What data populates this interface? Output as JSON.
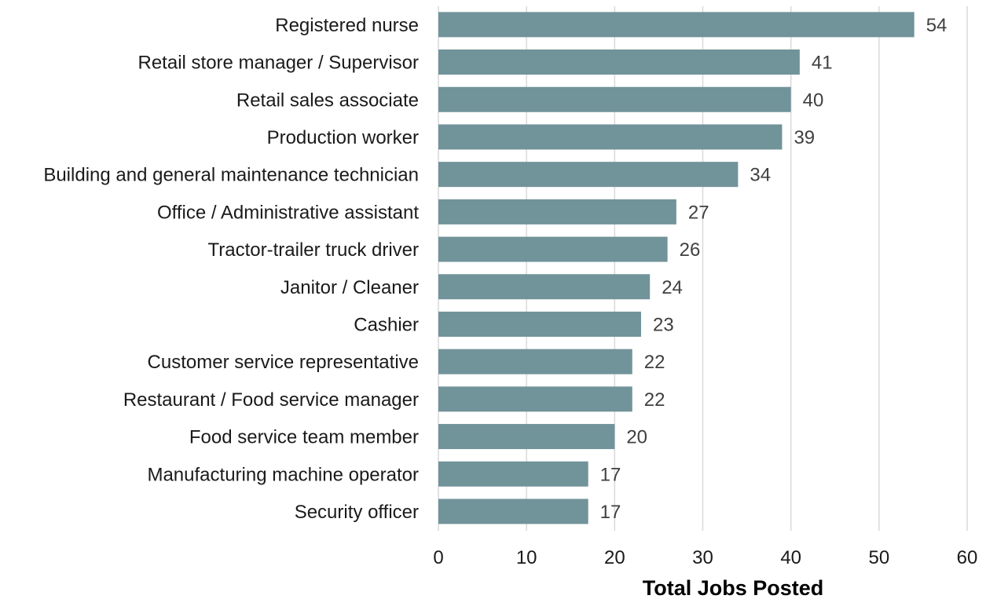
{
  "chart_data": {
    "type": "bar",
    "orientation": "horizontal",
    "categories": [
      "Registered nurse",
      "Retail store manager / Supervisor",
      "Retail sales associate",
      "Production worker",
      "Building and general maintenance technician",
      "Office / Administrative assistant",
      "Tractor-trailer truck driver",
      "Janitor / Cleaner",
      "Cashier",
      "Customer service representative",
      "Restaurant / Food service manager",
      "Food service team member",
      "Manufacturing machine operator",
      "Security officer"
    ],
    "values": [
      54,
      41,
      40,
      39,
      34,
      27,
      26,
      24,
      23,
      22,
      22,
      20,
      17,
      17
    ],
    "value_labels": [
      "54",
      "41",
      "40",
      "39",
      "34",
      "27",
      "26",
      "24",
      "23",
      "22",
      "22",
      "20",
      "17",
      "17"
    ],
    "xlabel": "Total Jobs Posted",
    "xlim": [
      0,
      60
    ],
    "xticks": [
      0,
      10,
      20,
      30,
      40,
      50,
      60
    ],
    "xtick_labels": [
      "0",
      "10",
      "20",
      "30",
      "40",
      "50",
      "60"
    ],
    "grid": "vertical",
    "legend": "none",
    "bar_color": "#71939a"
  }
}
